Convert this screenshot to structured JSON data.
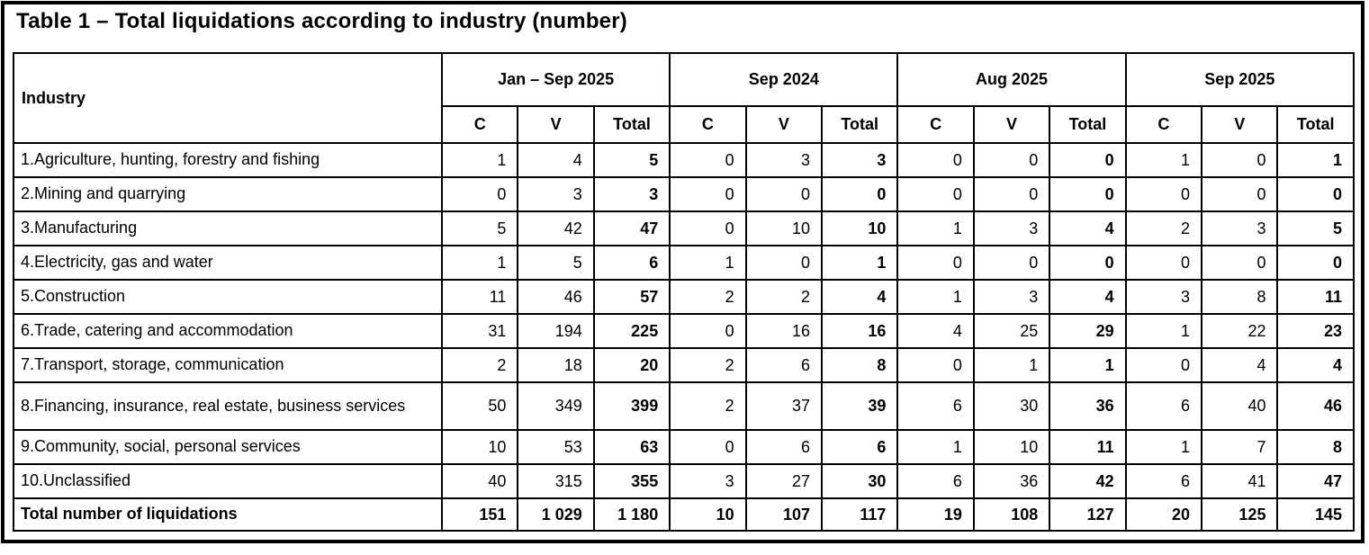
{
  "title": "Table 1 – Total liquidations according to industry (number)",
  "table": {
    "industry_header": "Industry",
    "period_groups": [
      {
        "label": "Jan – Sep 2025"
      },
      {
        "label": "Sep 2024"
      },
      {
        "label": "Aug 2025"
      },
      {
        "label": "Sep 2025"
      }
    ],
    "sub_headers": [
      "C",
      "V",
      "Total"
    ],
    "rows": [
      {
        "industry": "1.Agriculture, hunting, forestry and fishing",
        "values": [
          "1",
          "4",
          "5",
          "0",
          "3",
          "3",
          "0",
          "0",
          "0",
          "1",
          "0",
          "1"
        ]
      },
      {
        "industry": "2.Mining and quarrying",
        "values": [
          "0",
          "3",
          "3",
          "0",
          "0",
          "0",
          "0",
          "0",
          "0",
          "0",
          "0",
          "0"
        ]
      },
      {
        "industry": "3.Manufacturing",
        "values": [
          "5",
          "42",
          "47",
          "0",
          "10",
          "10",
          "1",
          "3",
          "4",
          "2",
          "3",
          "5"
        ]
      },
      {
        "industry": "4.Electricity, gas and water",
        "values": [
          "1",
          "5",
          "6",
          "1",
          "0",
          "1",
          "0",
          "0",
          "0",
          "0",
          "0",
          "0"
        ]
      },
      {
        "industry": "5.Construction",
        "values": [
          "11",
          "46",
          "57",
          "2",
          "2",
          "4",
          "1",
          "3",
          "4",
          "3",
          "8",
          "11"
        ]
      },
      {
        "industry": "6.Trade, catering and accommodation",
        "values": [
          "31",
          "194",
          "225",
          "0",
          "16",
          "16",
          "4",
          "25",
          "29",
          "1",
          "22",
          "23"
        ]
      },
      {
        "industry": "7.Transport, storage, communication",
        "values": [
          "2",
          "18",
          "20",
          "2",
          "6",
          "8",
          "0",
          "1",
          "1",
          "0",
          "4",
          "4"
        ]
      },
      {
        "industry": "8.Financing, insurance, real estate, business services",
        "values": [
          "50",
          "349",
          "399",
          "2",
          "37",
          "39",
          "6",
          "30",
          "36",
          "6",
          "40",
          "46"
        ]
      },
      {
        "industry": "9.Community, social, personal services",
        "values": [
          "10",
          "53",
          "63",
          "0",
          "6",
          "6",
          "1",
          "10",
          "11",
          "1",
          "7",
          "8"
        ]
      },
      {
        "industry": "10.Unclassified",
        "values": [
          "40",
          "315",
          "355",
          "3",
          "27",
          "30",
          "6",
          "36",
          "42",
          "6",
          "41",
          "47"
        ]
      }
    ],
    "total_row": {
      "label": "Total number of liquidations",
      "values": [
        "151",
        "1 029",
        "1 180",
        "10",
        "107",
        "117",
        "19",
        "108",
        "127",
        "20",
        "125",
        "145"
      ]
    }
  }
}
